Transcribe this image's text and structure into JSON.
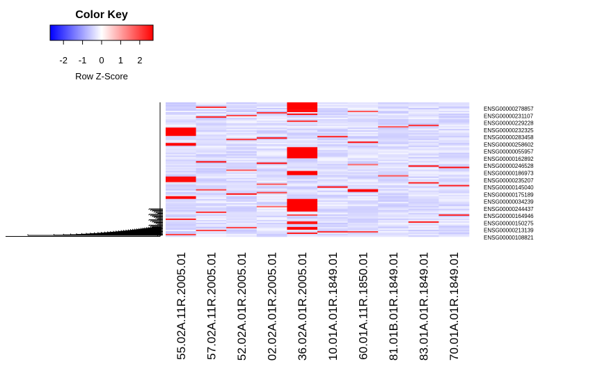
{
  "chart_data": {
    "type": "heatmap",
    "color_key": {
      "title": "Color Key",
      "xlabel": "Row Z-Score",
      "ticks": [
        "-2",
        "-1",
        "0",
        "1",
        "2"
      ],
      "tick_values": [
        -2,
        -1,
        0,
        1,
        2
      ],
      "range": [
        -2.7,
        2.7
      ],
      "colors": {
        "low": "#0000ff",
        "mid": "#ffffff",
        "high": "#ff0000"
      }
    },
    "columns": [
      "55.02A.11R.2005.01",
      "57.02A.11R.2005.01",
      "52.02A.01R.2005.01",
      "02.02A.01R.2005.01",
      "36.02A.01R.2005.01",
      "10.01A.01R.1849.01",
      "60.01A.11R.1850.01",
      "81.01B.01R.1849.01",
      "83.01A.01R.1849.01",
      "70.01A.01R.1849.01"
    ],
    "row_labels": [
      "ENSG00000278857",
      "ENSG00000231107",
      "ENSG00000229228",
      "ENSG00000232325",
      "ENSG00000283458",
      "ENSG00000258602",
      "ENSG00000055957",
      "ENSG00000162892",
      "ENSG00000246528",
      "ENSG00000186973",
      "ENSG00000235207",
      "ENSG00000145040",
      "ENSG00000175189",
      "ENSG00000034239",
      "ENSG00000244437",
      "ENSG00000164946",
      "ENSG00000150275",
      "ENSG00000213139",
      "ENSG00000108821"
    ],
    "n_rows": 96,
    "baseline_z": -0.35,
    "high_cells": [
      [
        4,
        0,
        5,
        2.7
      ],
      [
        4,
        5,
        2,
        2.6
      ],
      [
        4,
        8,
        1,
        2.6
      ],
      [
        4,
        13,
        1,
        2.2
      ],
      [
        4,
        32,
        8,
        2.7
      ],
      [
        4,
        49,
        3,
        2.7
      ],
      [
        4,
        69,
        9,
        2.7
      ],
      [
        4,
        80,
        1,
        2.0
      ],
      [
        4,
        85,
        2,
        2.4
      ],
      [
        4,
        89,
        2,
        2.6
      ],
      [
        4,
        93,
        1,
        2.4
      ],
      [
        0,
        18,
        6,
        2.7
      ],
      [
        0,
        29,
        2,
        2.7
      ],
      [
        0,
        53,
        4,
        2.6
      ],
      [
        0,
        67,
        2,
        2.6
      ],
      [
        0,
        83,
        1,
        2.4
      ],
      [
        0,
        94,
        1,
        2.0
      ],
      [
        1,
        3,
        1,
        2.2
      ],
      [
        1,
        10,
        1,
        2.4
      ],
      [
        1,
        42,
        1,
        2.6
      ],
      [
        1,
        62,
        1,
        2.0
      ],
      [
        1,
        78,
        1,
        2.2
      ],
      [
        1,
        91,
        1,
        2.0
      ],
      [
        2,
        9,
        1,
        2.0
      ],
      [
        2,
        26,
        1,
        2.2
      ],
      [
        2,
        48,
        1,
        1.8
      ],
      [
        2,
        65,
        1,
        2.6
      ],
      [
        2,
        89,
        1,
        2.0
      ],
      [
        3,
        7,
        1,
        2.2
      ],
      [
        3,
        25,
        1,
        2.6
      ],
      [
        3,
        43,
        1,
        2.6
      ],
      [
        3,
        58,
        1,
        1.8
      ],
      [
        3,
        64,
        1,
        2.0
      ],
      [
        3,
        74,
        1,
        1.6
      ],
      [
        5,
        24,
        1,
        2.4
      ],
      [
        5,
        60,
        1,
        2.6
      ],
      [
        5,
        92,
        1,
        2.2
      ],
      [
        6,
        6,
        1,
        1.8
      ],
      [
        6,
        28,
        1,
        2.6
      ],
      [
        6,
        44,
        1,
        1.6
      ],
      [
        6,
        62,
        2,
        2.6
      ],
      [
        6,
        92,
        1,
        2.0
      ],
      [
        7,
        17,
        1,
        1.8
      ],
      [
        7,
        52,
        1,
        1.8
      ],
      [
        8,
        16,
        1,
        2.2
      ],
      [
        8,
        45,
        1,
        2.6
      ],
      [
        8,
        57,
        1,
        2.4
      ],
      [
        8,
        85,
        1,
        2.4
      ],
      [
        9,
        46,
        1,
        2.6
      ],
      [
        9,
        59,
        1,
        2.4
      ],
      [
        9,
        80,
        1,
        2.4
      ]
    ],
    "dendrogram": "row"
  }
}
